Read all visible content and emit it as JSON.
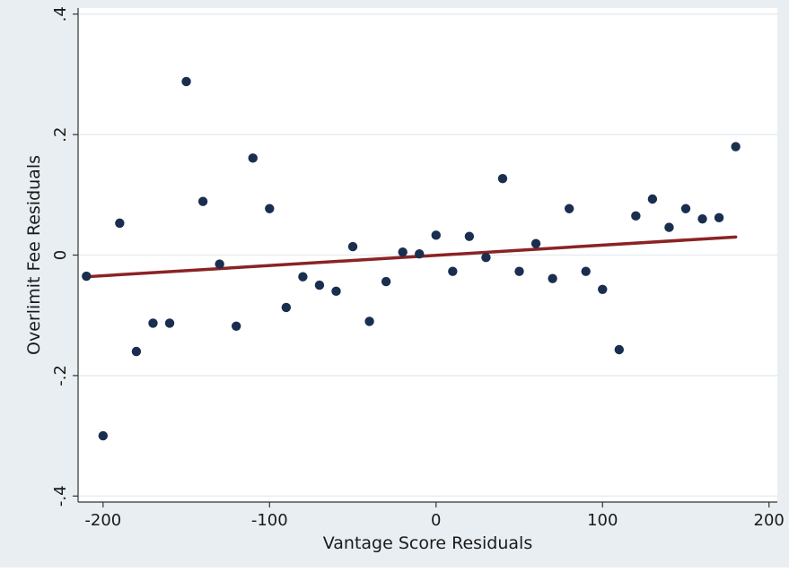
{
  "chart_data": {
    "type": "scatter",
    "title": "",
    "xlabel": "Vantage Score Residuals",
    "ylabel": "Overlimit Fee Residuals",
    "xlim": [
      -215,
      205
    ],
    "ylim": [
      -0.41,
      0.41
    ],
    "xticks": [
      -200,
      -100,
      0,
      100,
      200
    ],
    "xtick_labels": [
      "-200",
      "-100",
      "0",
      "100",
      "200"
    ],
    "yticks": [
      -0.4,
      -0.2,
      0,
      0.2,
      0.4
    ],
    "ytick_labels": [
      "-.4",
      "-.2",
      "0",
      ".2",
      ".4"
    ],
    "grid": true,
    "colors": {
      "outer_background": "#e8eef2",
      "plot_background": "#ffffff",
      "gridline": "#e8eef2",
      "point": "#1a2e4f",
      "fit_line": "#8b2323",
      "axis": "#333333"
    },
    "series": [
      {
        "kind": "points",
        "x": [
          -210,
          -200,
          -190,
          -180,
          -170,
          -160,
          -150,
          -140,
          -130,
          -120,
          -110,
          -100,
          -90,
          -80,
          -70,
          -60,
          -50,
          -40,
          -30,
          -20,
          -10,
          0,
          10,
          20,
          30,
          40,
          50,
          60,
          70,
          80,
          90,
          100,
          110,
          120,
          130,
          140,
          150,
          160,
          170,
          180
        ],
        "y": [
          -0.035,
          -0.3,
          0.053,
          -0.16,
          -0.113,
          -0.113,
          0.288,
          0.089,
          -0.015,
          -0.118,
          0.161,
          0.077,
          -0.087,
          -0.036,
          -0.05,
          -0.06,
          0.014,
          -0.11,
          -0.044,
          0.005,
          0.002,
          0.033,
          -0.027,
          0.031,
          -0.004,
          0.127,
          -0.027,
          0.019,
          -0.039,
          0.077,
          -0.027,
          -0.057,
          -0.157,
          0.065,
          0.093,
          0.046,
          0.077,
          0.06,
          0.062,
          0.18
        ]
      },
      {
        "kind": "fit_line",
        "x": [
          -210,
          180
        ],
        "y": [
          -0.036,
          0.03
        ]
      }
    ]
  }
}
